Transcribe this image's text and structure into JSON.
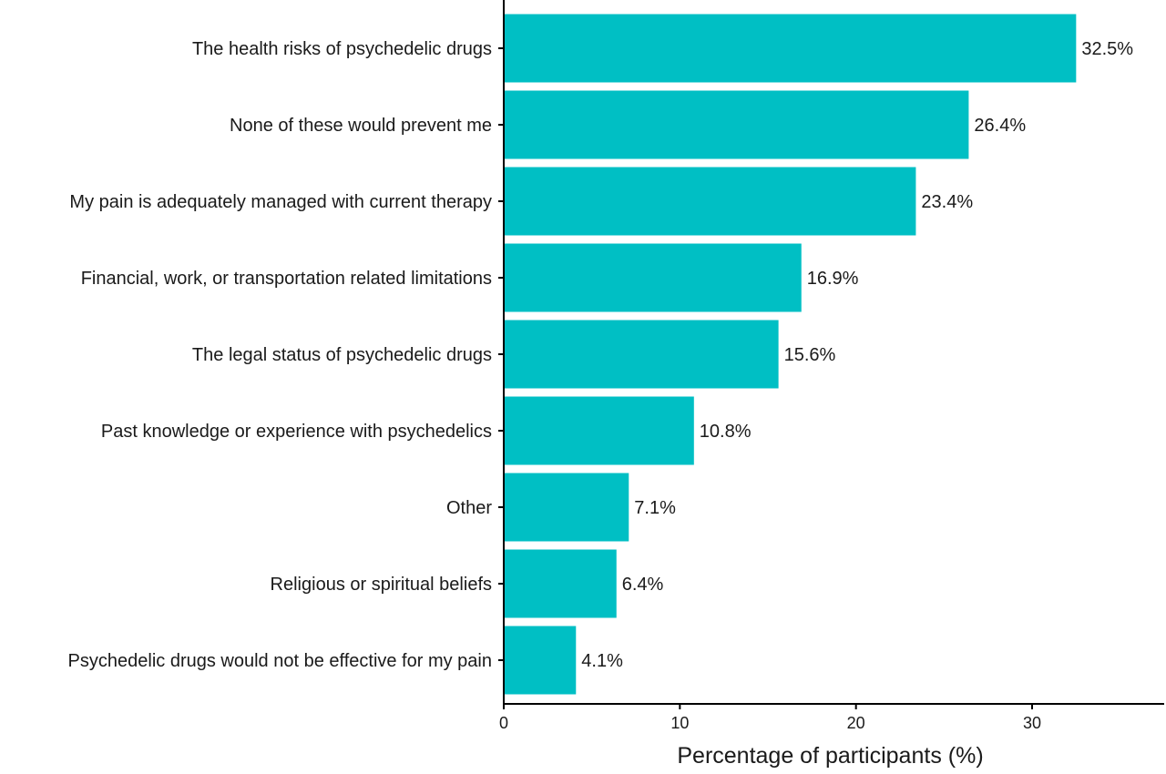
{
  "chart_data": {
    "type": "bar",
    "orientation": "horizontal",
    "categories": [
      "The health risks of psychedelic drugs",
      "None of these would prevent me",
      "My pain is adequately managed with current therapy",
      "Financial, work, or transportation related limitations",
      "The legal status of psychedelic drugs",
      "Past knowledge or experience with psychedelics",
      "Other",
      "Religious or spiritual beliefs",
      "Psychedelic drugs would not be effective for my pain"
    ],
    "values": [
      32.5,
      26.4,
      23.4,
      16.9,
      15.6,
      10.8,
      7.1,
      6.4,
      4.1
    ],
    "value_labels": [
      "32.5%",
      "26.4%",
      "23.4%",
      "16.9%",
      "15.6%",
      "10.8%",
      "7.1%",
      "6.4%",
      "4.1%"
    ],
    "title": "",
    "xlabel": "Percentage of participants (%)",
    "ylabel": "",
    "xlim": [
      0,
      37.5
    ],
    "xticks": [
      0,
      10,
      20,
      30
    ],
    "xtick_labels": [
      "0",
      "10",
      "20",
      "30"
    ],
    "grid": false,
    "legend": "none",
    "bar_color": "#00BFC4"
  }
}
